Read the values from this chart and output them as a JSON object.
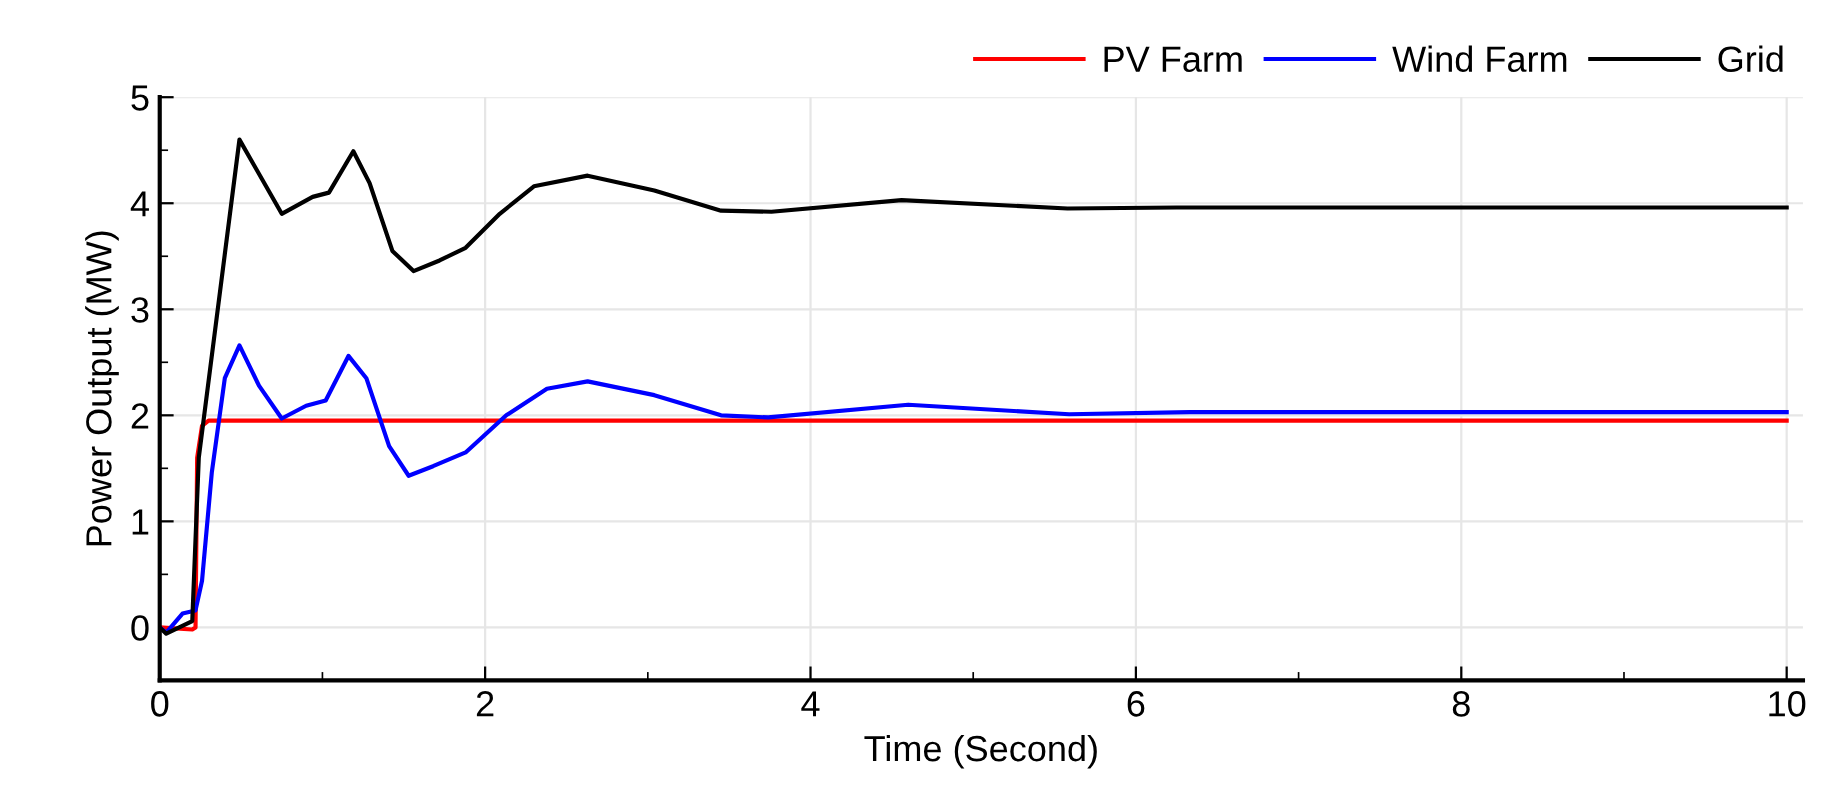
{
  "chart_data": {
    "type": "line",
    "xlabel": "Time (Second)",
    "ylabel": "Power Output (MW)",
    "xlim": [
      0,
      10.1
    ],
    "xticks": [
      0,
      2,
      4,
      6,
      8,
      10
    ],
    "ylim": [
      -0.5,
      5
    ],
    "yticks": [
      0,
      1,
      2,
      3,
      4,
      5
    ],
    "grid": true,
    "legend": "top right",
    "marker": "none",
    "line_style": "solid",
    "series": [
      {
        "name": "PV Farm",
        "color": "#ff0000",
        "x": [
          0,
          0.2,
          0.22,
          0.23,
          0.26,
          0.3,
          10
        ],
        "values": [
          0,
          -0.02,
          0,
          1.6,
          1.9,
          1.95,
          1.95
        ]
      },
      {
        "name": "Wind Farm",
        "color": "#0000ff",
        "x": [
          0,
          0.04,
          0.14,
          0.22,
          0.26,
          0.32,
          0.4,
          0.49,
          0.61,
          0.75,
          0.9,
          1.02,
          1.16,
          1.27,
          1.41,
          1.53,
          1.68,
          1.88,
          2.13,
          2.38,
          2.63,
          3.04,
          3.45,
          3.74,
          4.6,
          5.59,
          6.33,
          10
        ],
        "values": [
          0,
          -0.05,
          0.13,
          0.16,
          0.44,
          1.46,
          2.35,
          2.66,
          2.28,
          1.97,
          2.09,
          2.14,
          2.56,
          2.35,
          1.71,
          1.43,
          1.52,
          1.65,
          2.0,
          2.25,
          2.32,
          2.19,
          2.0,
          1.98,
          2.1,
          2.01,
          2.03,
          2.03
        ]
      },
      {
        "name": "Grid",
        "color": "#000000",
        "x": [
          0,
          0.04,
          0.12,
          0.2,
          0.24,
          0.49,
          0.75,
          0.94,
          1.04,
          1.19,
          1.29,
          1.43,
          1.56,
          1.72,
          1.88,
          2.09,
          2.3,
          2.63,
          3.04,
          3.45,
          3.76,
          4.56,
          5.58,
          6.25,
          10
        ],
        "values": [
          0,
          -0.06,
          0,
          0.06,
          1.6,
          4.6,
          3.9,
          4.06,
          4.1,
          4.49,
          4.19,
          3.55,
          3.36,
          3.46,
          3.58,
          3.9,
          4.16,
          4.26,
          4.12,
          3.93,
          3.92,
          4.03,
          3.95,
          3.96,
          3.96
        ]
      }
    ]
  }
}
